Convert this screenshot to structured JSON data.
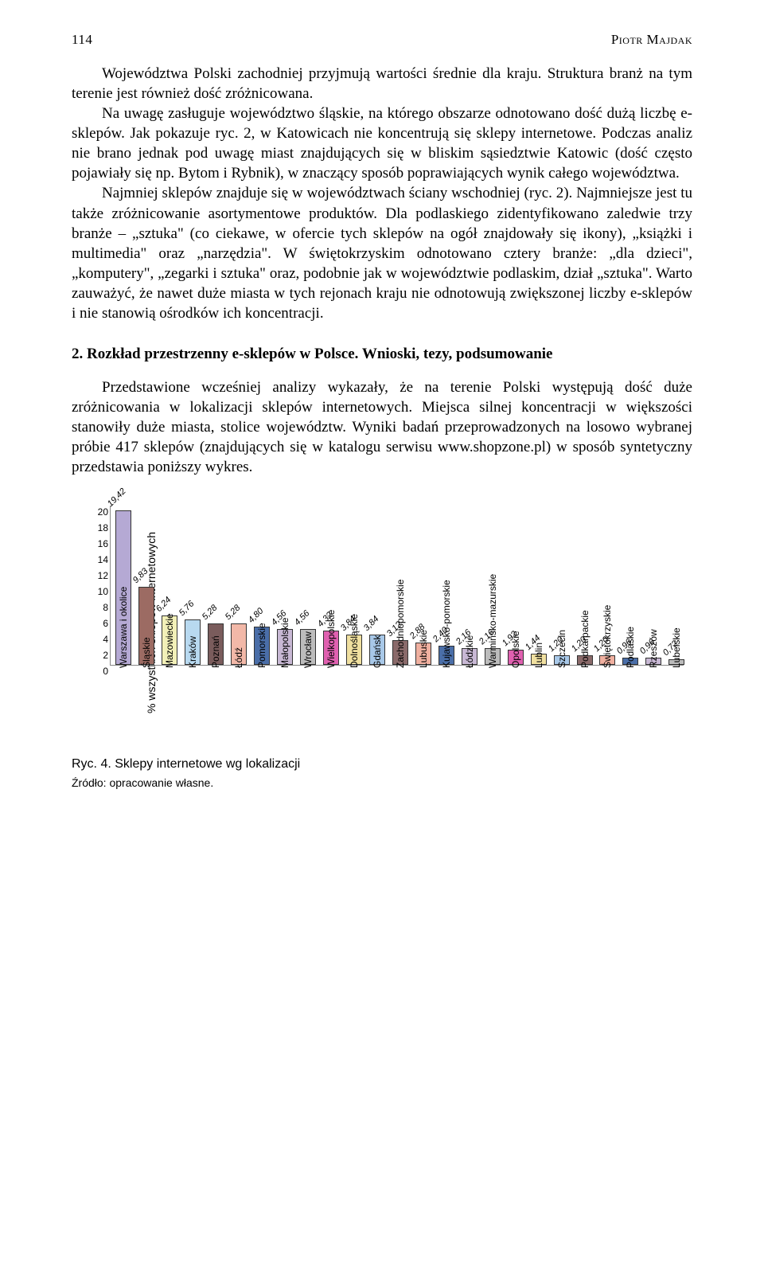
{
  "page_number": "114",
  "author": "Piotr Majdak",
  "paragraph1": "Województwa Polski zachodniej przyjmują wartości średnie dla kraju. Struktura branż na tym terenie jest również dość zróżnicowana.",
  "paragraph2": "Na uwagę zasługuje województwo śląskie, na którego obszarze odnotowano dość dużą liczbę e-sklepów. Jak pokazuje ryc. 2, w Katowicach nie koncentrują się sklepy internetowe. Podczas analiz nie brano jednak pod uwagę miast znajdujących się w bliskim sąsiedztwie Katowic (dość często pojawiały się np. Bytom i Rybnik), w znaczący sposób poprawiających wynik całego województwa.",
  "paragraph3": "Najmniej sklepów znajduje się w województwach ściany wschodniej (ryc. 2). Najmniejsze jest tu także zróżnicowanie asortymentowe produktów. Dla podlaskiego zidentyfikowano zaledwie trzy branże – „sztuka\" (co ciekawe, w ofercie tych sklepów na ogół znajdowały się ikony), „książki i multimedia\" oraz „narzędzia\". W świętokrzyskim odnotowano cztery branże: „dla dzieci\", „komputery\", „zegarki i sztuka\" oraz, podobnie jak w województwie podlaskim, dział „sztuka\". Warto zauważyć, że nawet duże miasta w tych rejonach kraju nie odnotowują zwiększonej liczby e-sklepów i nie stanowią ośrodków ich koncentracji.",
  "section_heading": "2. Rozkład przestrzenny e-sklepów w Polsce. Wnioski, tezy, podsumowanie",
  "paragraph4": "Przedstawione wcześniej analizy wykazały, że na terenie Polski występują dość duże zróżnicowania w lokalizacji sklepów internetowych. Miejsca silnej koncentracji w większości stanowiły duże miasta, stolice województw. Wyniki badań przeprowadzonych na losowo wybranej próbie 417 sklepów (znajdujących się w katalogu serwisu www.shopzone.pl) w sposób syntetyczny przedstawia poniższy wykres.",
  "chart": {
    "type": "bar",
    "y_label": "% wszystkich sklepów internetowych",
    "y_max": 20,
    "y_ticks": [
      0,
      2,
      4,
      6,
      8,
      10,
      12,
      14,
      16,
      18,
      20
    ],
    "bar_border": "#333333",
    "bars": [
      {
        "label": "Warszawa i okolice",
        "value": 19.42,
        "value_label": "19,42",
        "color": "#b5a9d4"
      },
      {
        "label": "Śląskie",
        "value": 9.83,
        "value_label": "9,83",
        "color": "#9c6b63"
      },
      {
        "label": "Mazowieckie",
        "value": 6.24,
        "value_label": "6,24",
        "color": "#f2f0b8"
      },
      {
        "label": "Kraków",
        "value": 5.76,
        "value_label": "5,76",
        "color": "#b8d9f0"
      },
      {
        "label": "Poznań",
        "value": 5.28,
        "value_label": "5,28",
        "color": "#7a5c5c"
      },
      {
        "label": "Łódź",
        "value": 5.28,
        "value_label": "5,28",
        "color": "#f2b8a8"
      },
      {
        "label": "Pomorskie",
        "value": 4.8,
        "value_label": "4,80",
        "color": "#4a6ea8"
      },
      {
        "label": "Małopolskie",
        "value": 4.56,
        "value_label": "4,56",
        "color": "#c8b8d4"
      },
      {
        "label": "Wrocław",
        "value": 4.56,
        "value_label": "4,56",
        "color": "#bcbcbc"
      },
      {
        "label": "Wielkopolskie",
        "value": 4.32,
        "value_label": "4,32",
        "color": "#e060b0"
      },
      {
        "label": "Dolnośląskie",
        "value": 3.84,
        "value_label": "3,84",
        "color": "#f0e0a0"
      },
      {
        "label": "Gdańsk",
        "value": 3.84,
        "value_label": "3,84",
        "color": "#a8c8e8"
      },
      {
        "label": "Zachodniopomorskie",
        "value": 3.12,
        "value_label": "3,12",
        "color": "#8a6a6a"
      },
      {
        "label": "Lubuskie",
        "value": 2.88,
        "value_label": "2,88",
        "color": "#f0b0a0"
      },
      {
        "label": "Kujawsko-pomorskie",
        "value": 2.4,
        "value_label": "2,40",
        "color": "#4a6ea8"
      },
      {
        "label": "Łódzkie",
        "value": 2.16,
        "value_label": "2,16",
        "color": "#c8b8d4"
      },
      {
        "label": "Warmińsko-mazurskie",
        "value": 2.16,
        "value_label": "2,16",
        "color": "#bcbcbc"
      },
      {
        "label": "Opolskie",
        "value": 1.92,
        "value_label": "1,92",
        "color": "#e060b0"
      },
      {
        "label": "Lublin",
        "value": 1.44,
        "value_label": "1,44",
        "color": "#f0e0a0"
      },
      {
        "label": "Szczecin",
        "value": 1.2,
        "value_label": "1,20",
        "color": "#a8c8e8"
      },
      {
        "label": "Podkarpackie",
        "value": 1.2,
        "value_label": "1,20",
        "color": "#8a6a6a"
      },
      {
        "label": "Świętokrzyskie",
        "value": 1.2,
        "value_label": "1,20",
        "color": "#f0b0a0"
      },
      {
        "label": "Podlaskie",
        "value": 0.96,
        "value_label": "0,96",
        "color": "#4a6ea8"
      },
      {
        "label": "Rzeszów",
        "value": 0.96,
        "value_label": "0,96",
        "color": "#c8b8d4"
      },
      {
        "label": "Lubelskie",
        "value": 0.72,
        "value_label": "0,72",
        "color": "#bcbcbc"
      }
    ]
  },
  "caption": "Ryc. 4. Sklepy internetowe wg lokalizacji",
  "source": "Źródło: opracowanie własne."
}
